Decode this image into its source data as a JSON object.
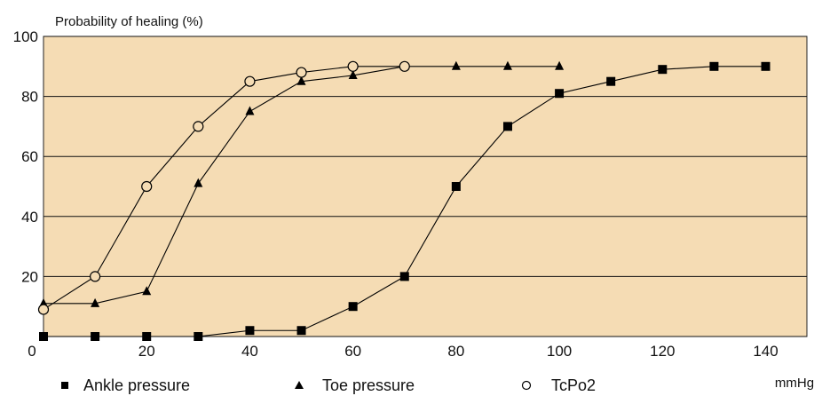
{
  "chart_data": {
    "type": "line",
    "title": "",
    "ylabel": "Probability of healing (%)",
    "xlabel": "mmHg",
    "xlim": [
      0,
      148
    ],
    "ylim": [
      0,
      100
    ],
    "x_ticks": [
      0,
      20,
      40,
      60,
      80,
      100,
      120,
      140
    ],
    "y_ticks": [
      20,
      40,
      60,
      80,
      100
    ],
    "y_tick_labels": [
      "20",
      "40",
      "60",
      "80",
      "100"
    ],
    "x_tick_labels": [
      "0",
      "20",
      "40",
      "60",
      "80",
      "100",
      "120",
      "140"
    ],
    "grid": "horizontal",
    "legend_position": "bottom",
    "plot_background": "#f5dcb4",
    "series": [
      {
        "name": "Ankle pressure",
        "marker": "square",
        "color": "#000000",
        "x": [
          0,
          10,
          20,
          30,
          40,
          50,
          60,
          70,
          80,
          90,
          100,
          110,
          120,
          130,
          140
        ],
        "y": [
          0,
          0,
          0,
          0,
          2,
          2,
          10,
          20,
          50,
          70,
          81,
          85,
          89,
          90,
          90
        ]
      },
      {
        "name": "Toe pressure",
        "marker": "triangle",
        "color": "#000000",
        "x": [
          0,
          10,
          20,
          30,
          40,
          50,
          60,
          70,
          80,
          90,
          100
        ],
        "y": [
          11,
          11,
          15,
          51,
          75,
          85,
          87,
          90,
          90,
          90,
          90
        ]
      },
      {
        "name": "TcPo2",
        "marker": "circle-open",
        "color": "#000000",
        "x": [
          0,
          10,
          20,
          30,
          40,
          50,
          60,
          70
        ],
        "y": [
          9,
          20,
          50,
          70,
          85,
          88,
          90,
          90
        ]
      }
    ]
  }
}
